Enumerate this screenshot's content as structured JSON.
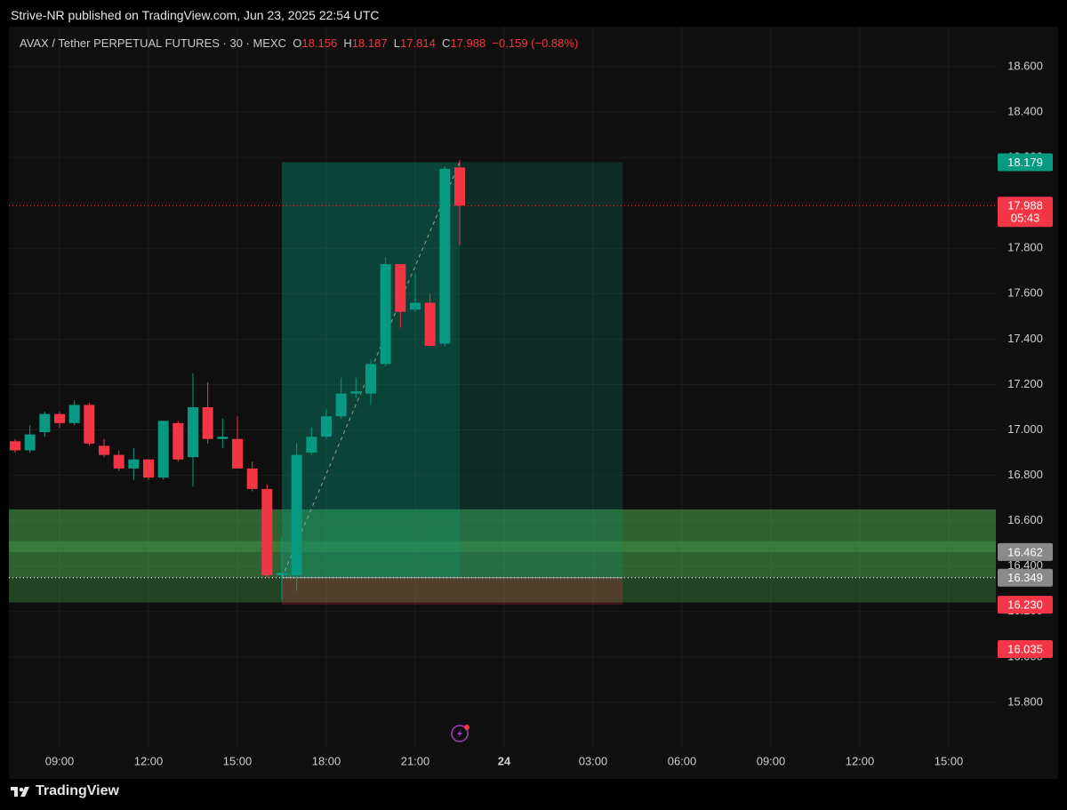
{
  "header": {
    "published": "Strive-NR published on TradingView.com, Jun 23, 2025 22:54 UTC",
    "symbol": "AVAX / Tether PERPETUAL FUTURES · 30 · MEXC",
    "ohlc_labels": [
      "O",
      "H",
      "L",
      "C"
    ],
    "change": "−0.159 (−0.88%)"
  },
  "footer": {
    "brand": "TradingView"
  },
  "chart_data": {
    "type": "candlestick",
    "x": [
      7.5,
      8,
      8.5,
      9,
      9.5,
      10,
      10.5,
      11,
      11.5,
      12,
      12.5,
      13,
      13.5,
      14,
      14.5,
      15,
      15.5,
      16,
      16.5,
      17,
      17.5,
      18,
      18.5,
      19,
      19.5,
      20,
      20.5,
      21,
      21.5,
      22,
      22.5
    ],
    "open": [
      16.95,
      16.91,
      16.99,
      17.07,
      17.03,
      17.11,
      16.93,
      16.89,
      16.83,
      16.87,
      16.79,
      17.03,
      16.88,
      17.1,
      16.96,
      16.96,
      16.83,
      16.74,
      16.36,
      16.36,
      16.9,
      16.97,
      17.06,
      17.16,
      17.16,
      17.29,
      17.73,
      17.53,
      17.56,
      17.38,
      18.156
    ],
    "high": [
      16.96,
      17.02,
      17.08,
      17.08,
      17.13,
      17.12,
      16.96,
      16.91,
      16.92,
      16.87,
      17.04,
      17.04,
      17.25,
      17.21,
      17.05,
      17.06,
      16.86,
      16.76,
      16.53,
      16.94,
      17.01,
      17.09,
      17.23,
      17.23,
      17.31,
      17.76,
      17.73,
      17.69,
      17.6,
      18.16,
      18.187
    ],
    "low": [
      16.9,
      16.9,
      16.97,
      17.01,
      17.02,
      16.93,
      16.88,
      16.82,
      16.78,
      16.78,
      16.78,
      16.86,
      16.75,
      16.94,
      16.92,
      16.83,
      16.73,
      16.35,
      16.25,
      16.29,
      16.89,
      16.96,
      17.05,
      17.14,
      17.11,
      17.28,
      17.45,
      17.52,
      17.37,
      17.37,
      17.814
    ],
    "close": [
      16.91,
      16.98,
      17.07,
      17.03,
      17.11,
      16.94,
      16.89,
      16.83,
      16.87,
      16.79,
      17.04,
      16.87,
      17.1,
      16.96,
      16.97,
      16.83,
      16.74,
      16.36,
      16.37,
      16.89,
      16.97,
      17.06,
      17.16,
      17.17,
      17.29,
      17.73,
      17.52,
      17.56,
      17.37,
      18.15,
      17.988
    ],
    "up_color": "#089981",
    "down_color": "#f23645",
    "xlim": [
      7.29,
      40.59
    ],
    "ylim": [
      15.604,
      18.776
    ],
    "xticks": [
      {
        "value": 9,
        "label": "09:00"
      },
      {
        "value": 12,
        "label": "12:00"
      },
      {
        "value": 15,
        "label": "15:00"
      },
      {
        "value": 18,
        "label": "18:00"
      },
      {
        "value": 21,
        "label": "21:00"
      },
      {
        "value": 24,
        "label": "24"
      },
      {
        "value": 27,
        "label": "03:00"
      },
      {
        "value": 30,
        "label": "06:00"
      },
      {
        "value": 33,
        "label": "09:00"
      },
      {
        "value": 36,
        "label": "12:00"
      },
      {
        "value": 39,
        "label": "15:00"
      }
    ],
    "yticks": [
      {
        "value": 15.8,
        "label": "15.800"
      },
      {
        "value": 16,
        "label": "16.000"
      },
      {
        "value": 16.2,
        "label": "16.200"
      },
      {
        "value": 16.4,
        "label": "16.400"
      },
      {
        "value": 16.6,
        "label": "16.600"
      },
      {
        "value": 16.8,
        "label": "16.800"
      },
      {
        "value": 17,
        "label": "17.000"
      },
      {
        "value": 17.2,
        "label": "17.200"
      },
      {
        "value": 17.4,
        "label": "17.400"
      },
      {
        "value": 17.6,
        "label": "17.600"
      },
      {
        "value": 17.8,
        "label": "17.800"
      },
      {
        "value": 18,
        "label": "18.000"
      },
      {
        "value": 18.2,
        "label": "18.200"
      },
      {
        "value": 18.4,
        "label": "18.400"
      },
      {
        "value": 18.6,
        "label": "18.600"
      }
    ],
    "grid": true,
    "zones": [
      {
        "from": 16.24,
        "to": 16.65,
        "color": "rgba(76,175,80,0.32)"
      },
      {
        "from": 16.35,
        "to": 16.65,
        "color": "rgba(76,175,80,0.3)"
      },
      {
        "from": 16.462,
        "to": 16.51,
        "color": "rgba(76,175,80,0.3)"
      }
    ],
    "position": {
      "x_start": 16.5,
      "x_end": 28.0,
      "entry": 16.349,
      "target": 18.179,
      "stop": 16.23
    },
    "lines": [
      {
        "value": 17.988,
        "color": "#f23645"
      },
      {
        "value": 16.349,
        "color": "#ffffff"
      }
    ],
    "price_labels": [
      {
        "value": 18.179,
        "color": "#089981"
      },
      {
        "value": 17.988,
        "color": "#f23645",
        "countdown": "05:43"
      },
      {
        "value": 16.462,
        "color": "#8a8a8a"
      },
      {
        "value": 16.349,
        "color": "#8a8a8a"
      },
      {
        "value": 16.23,
        "label": "16.230",
        "color": "#f23645"
      },
      {
        "value": 16.035,
        "color": "#f23645"
      }
    ]
  }
}
